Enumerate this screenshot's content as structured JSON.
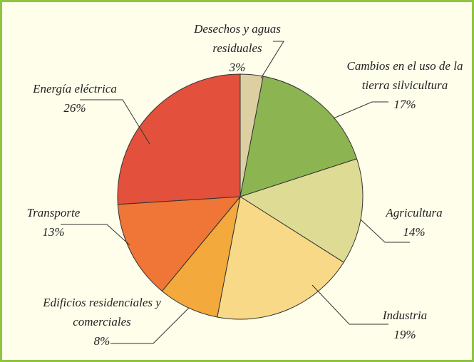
{
  "chart_data": {
    "type": "pie",
    "categories": [
      "Desechos y aguas residuales",
      "Cambios en el uso de la tierra silvicultura",
      "Agricultura",
      "Industria",
      "Edificios residenciales y comerciales",
      "Transporte",
      "Energía eléctrica"
    ],
    "values": [
      3,
      17,
      14,
      19,
      8,
      13,
      26
    ],
    "value_labels": [
      "3%",
      "17%",
      "14%",
      "19%",
      "8%",
      "13%",
      "26%"
    ],
    "colors": [
      "#dccfa2",
      "#8cb552",
      "#dedc94",
      "#f8d987",
      "#f3a93b",
      "#ef7637",
      "#e3503c"
    ]
  }
}
